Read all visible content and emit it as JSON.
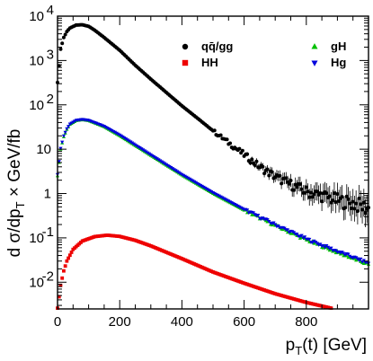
{
  "chart_data": {
    "type": "scatter",
    "title": "",
    "xlabel": "p_T(t) [GeV]",
    "ylabel": "d σ/dp_T × GeV/fb",
    "xlim": [
      0,
      1000
    ],
    "ylim": [
      0.0025,
      10000
    ],
    "y_scale": "log",
    "grid": false,
    "legend_position": "top-right",
    "x_ticks": [
      "0",
      "200",
      "400",
      "600",
      "800"
    ],
    "y_ticks": [
      {
        "value": 0.01,
        "base": "10",
        "exp": "-2"
      },
      {
        "value": 0.1,
        "base": "10",
        "exp": "-1"
      },
      {
        "value": 1,
        "base": "1",
        "exp": ""
      },
      {
        "value": 10,
        "base": "10",
        "exp": ""
      },
      {
        "value": 100,
        "base": "10",
        "exp": "2"
      },
      {
        "value": 1000,
        "base": "10",
        "exp": "3"
      },
      {
        "value": 10000,
        "base": "10",
        "exp": "4"
      }
    ],
    "series": [
      {
        "name": "qq̄/gg",
        "color": "#000000",
        "marker": "circle",
        "points": [
          [
            0,
            320
          ],
          [
            10,
            1800
          ],
          [
            20,
            3300
          ],
          [
            30,
            4500
          ],
          [
            40,
            5400
          ],
          [
            60,
            6300
          ],
          [
            80,
            6400
          ],
          [
            100,
            5900
          ],
          [
            120,
            4800
          ],
          [
            150,
            3300
          ],
          [
            200,
            1700
          ],
          [
            250,
            780
          ],
          [
            300,
            380
          ],
          [
            350,
            190
          ],
          [
            400,
            95
          ],
          [
            450,
            50
          ],
          [
            500,
            26
          ],
          [
            550,
            14
          ],
          [
            600,
            7.5
          ],
          [
            650,
            4
          ],
          [
            700,
            2.4
          ],
          [
            750,
            1.6
          ],
          [
            800,
            1.1
          ],
          [
            850,
            0.9
          ],
          [
            900,
            0.7
          ],
          [
            950,
            0.6
          ],
          [
            1000,
            0.45
          ]
        ]
      },
      {
        "name": "gH",
        "color": "#00c000",
        "marker": "triangle-up",
        "points": [
          [
            0,
            2.5
          ],
          [
            10,
            10
          ],
          [
            20,
            19
          ],
          [
            30,
            28
          ],
          [
            40,
            36
          ],
          [
            60,
            44
          ],
          [
            80,
            46
          ],
          [
            100,
            44
          ],
          [
            150,
            32
          ],
          [
            200,
            20
          ],
          [
            300,
            7.2
          ],
          [
            400,
            2.6
          ],
          [
            500,
            1.0
          ],
          [
            600,
            0.42
          ],
          [
            700,
            0.19
          ],
          [
            800,
            0.09
          ],
          [
            900,
            0.047
          ],
          [
            1000,
            0.025
          ]
        ]
      },
      {
        "name": "Hg",
        "color": "#0000dd",
        "marker": "triangle-down",
        "points": [
          [
            0,
            2.7
          ],
          [
            10,
            10.5
          ],
          [
            20,
            20
          ],
          [
            30,
            29
          ],
          [
            40,
            37
          ],
          [
            60,
            45
          ],
          [
            80,
            47
          ],
          [
            100,
            45
          ],
          [
            150,
            33
          ],
          [
            200,
            21
          ],
          [
            300,
            7.5
          ],
          [
            400,
            2.7
          ],
          [
            500,
            1.05
          ],
          [
            600,
            0.44
          ],
          [
            700,
            0.2
          ],
          [
            800,
            0.095
          ],
          [
            900,
            0.05
          ],
          [
            1000,
            0.027
          ]
        ]
      },
      {
        "name": "HH",
        "color": "#ee0000",
        "marker": "square",
        "points": [
          [
            0,
            0.0026
          ],
          [
            10,
            0.0085
          ],
          [
            20,
            0.018
          ],
          [
            30,
            0.03
          ],
          [
            50,
            0.055
          ],
          [
            80,
            0.085
          ],
          [
            120,
            0.107
          ],
          [
            160,
            0.115
          ],
          [
            200,
            0.108
          ],
          [
            250,
            0.088
          ],
          [
            300,
            0.066
          ],
          [
            400,
            0.034
          ],
          [
            500,
            0.017
          ],
          [
            600,
            0.0095
          ],
          [
            700,
            0.0055
          ],
          [
            800,
            0.0035
          ],
          [
            880,
            0.0026
          ]
        ]
      }
    ]
  }
}
